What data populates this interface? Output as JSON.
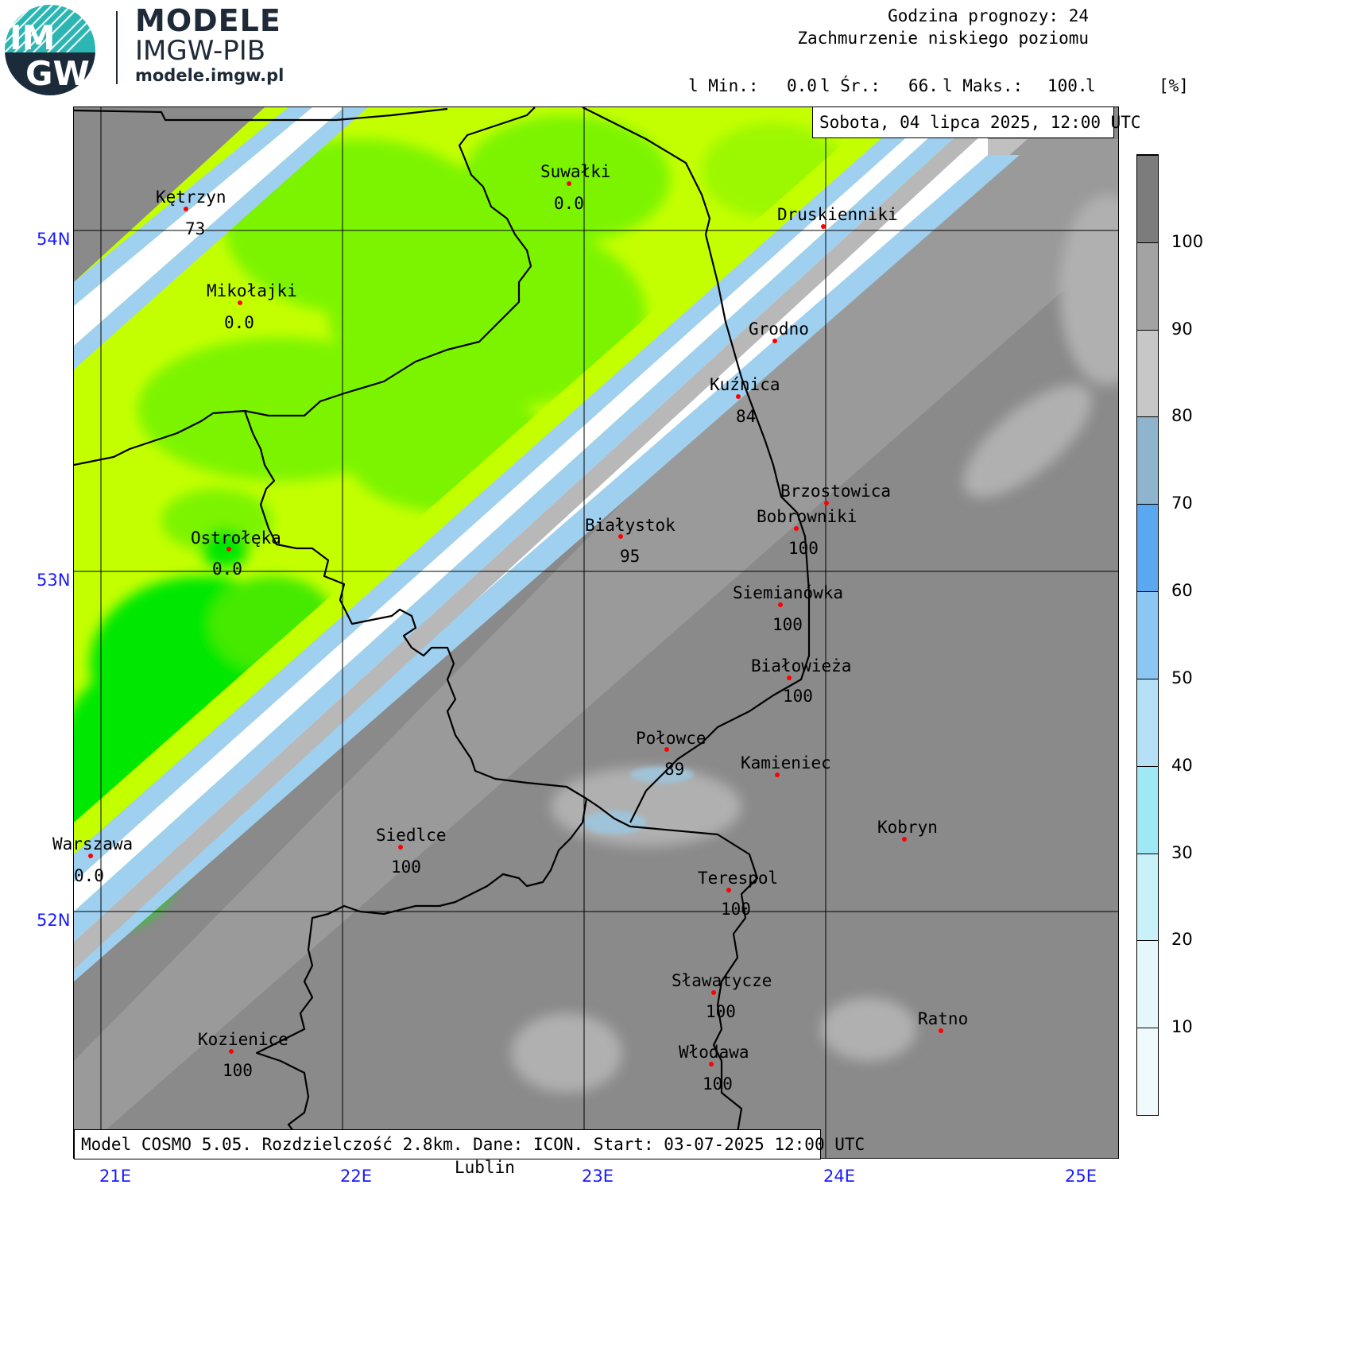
{
  "header": {
    "brand_line1": "MODELE",
    "brand_line2": "IMGW-PIB",
    "brand_url": "modele.imgw.pl",
    "logo_text_top": "IM",
    "logo_text_bottom": "GW",
    "forecast_hour": "Godzina prognozy: 24",
    "parameter": "Zachmurzenie niskiego poziomu",
    "stats": {
      "min_label": "l Min.:",
      "min_value": "0.0",
      "avg_label": "l Śr.:",
      "avg_value": "66.",
      "max_label": "l Maks.:",
      "max_value": "100.",
      "end_bar": "l",
      "unit": "[%]"
    }
  },
  "date_box": "Sobota, 04 lipca 2025, 12:00 UTC",
  "footer_box": "Model COSMO 5.05. Rozdzielczość 2.8km. Dane: ICON. Start: 03-07-2025 12:00 UTC",
  "below_map_label": "Lublin",
  "axes": {
    "lat_labels": [
      "54N",
      "53N",
      "52N"
    ],
    "lon_labels": [
      "21E",
      "22E",
      "23E",
      "24E",
      "25E"
    ]
  },
  "legend": {
    "colors": [
      "#f0f9fb",
      "#e6f7fb",
      "#c8f2f8",
      "#9fe9f5",
      "#b5e0f5",
      "#8cc6f3",
      "#5aa8f0",
      "#8fb4cd",
      "#c7c7c7",
      "#a3a3a3",
      "#7c7c7c"
    ],
    "labels": [
      "10",
      "20",
      "30",
      "40",
      "50",
      "60",
      "70",
      "80",
      "90",
      "100"
    ]
  },
  "cities": [
    {
      "name": "Kętrzyn",
      "value": "73"
    },
    {
      "name": "Mikołajki",
      "value": "0.0"
    },
    {
      "name": "Suwałki",
      "value": "0.0"
    },
    {
      "name": "Druskienniki",
      "value": ""
    },
    {
      "name": "Grodno",
      "value": ""
    },
    {
      "name": "Kuźnica",
      "value": "84"
    },
    {
      "name": "Ostrołęka",
      "value": "0.0"
    },
    {
      "name": "Białystok",
      "value": "95"
    },
    {
      "name": "Brzostowica",
      "value": ""
    },
    {
      "name": "Bobrowniki",
      "value": "100"
    },
    {
      "name": "Siemianówka",
      "value": "100"
    },
    {
      "name": "Białowieża",
      "value": "100"
    },
    {
      "name": "Połowce",
      "value": "89"
    },
    {
      "name": "Kamieniec",
      "value": ""
    },
    {
      "name": "Warszawa",
      "value": "0.0"
    },
    {
      "name": "Siedlce",
      "value": "100"
    },
    {
      "name": "Kobryn",
      "value": ""
    },
    {
      "name": "Terespol",
      "value": "100"
    },
    {
      "name": "Sławatycze",
      "value": "100"
    },
    {
      "name": "Ratno",
      "value": ""
    },
    {
      "name": "Kozienice",
      "value": "100"
    },
    {
      "name": "Włodawa",
      "value": "100"
    }
  ],
  "colors": {
    "green_dark": "#00e800",
    "green_mid": "#7cf400",
    "yellow_green": "#c4ff00",
    "white_band": "#ffffff",
    "blue_band": "#9fd0ef",
    "gray": "#8c8c8c",
    "gray_light": "#b4b4b4",
    "city_dot": "#ff0000",
    "axis_label": "#1a1aff"
  }
}
